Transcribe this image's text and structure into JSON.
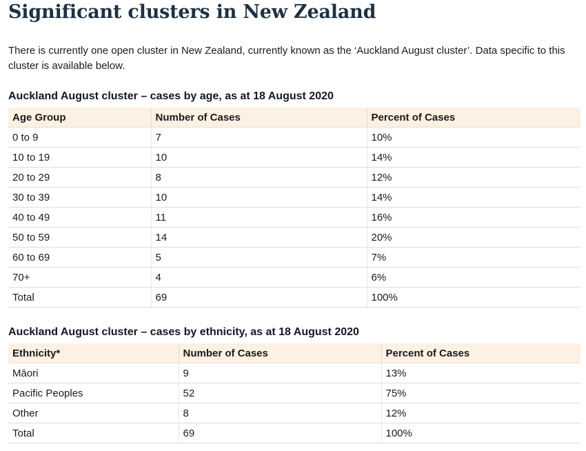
{
  "page": {
    "title": "Significant clusters in New Zealand",
    "intro": "There is currently one open cluster in New Zealand, currently known as the ‘Auckland August cluster’. Data specific to this cluster is available below."
  },
  "age_table": {
    "heading": "Auckland August cluster – cases by age, as at 18 August 2020",
    "columns": [
      "Age Group",
      "Number of Cases",
      "Percent of Cases"
    ],
    "rows": [
      [
        "0 to 9",
        "7",
        "10%"
      ],
      [
        "10 to 19",
        "10",
        "14%"
      ],
      [
        "20 to 29",
        "8",
        "12%"
      ],
      [
        "30 to 39",
        "10",
        "14%"
      ],
      [
        "40 to 49",
        "11",
        "16%"
      ],
      [
        "50 to 59",
        "14",
        "20%"
      ],
      [
        "60 to 69",
        "5",
        "7%"
      ],
      [
        "70+",
        "4",
        "6%"
      ],
      [
        "Total",
        "69",
        "100%"
      ]
    ]
  },
  "ethnicity_table": {
    "heading": "Auckland August cluster – cases by ethnicity, as at 18 August 2020",
    "columns": [
      "Ethnicity*",
      "Number of Cases",
      "Percent of Cases"
    ],
    "rows": [
      [
        "Māori",
        "9",
        "13%"
      ],
      [
        "Pacific Peoples",
        "52",
        "75%"
      ],
      [
        "Other",
        "8",
        "12%"
      ],
      [
        "Total",
        "69",
        "100%"
      ]
    ]
  }
}
